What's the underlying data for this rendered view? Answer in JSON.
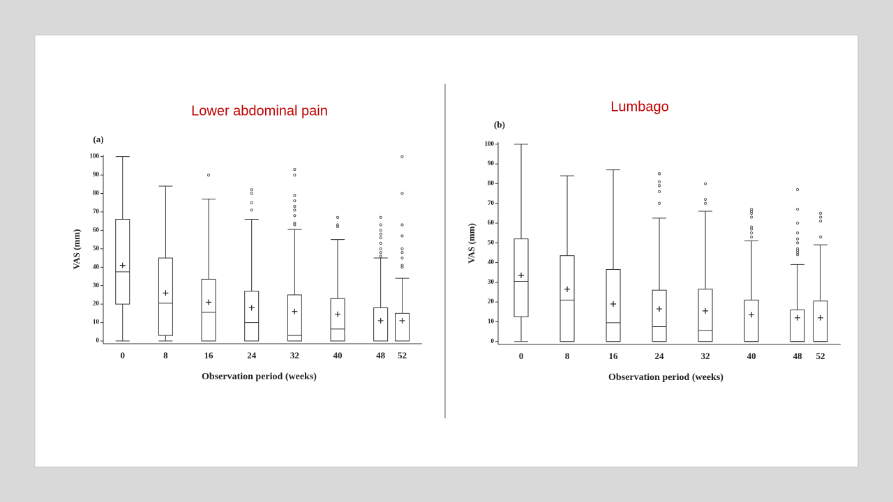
{
  "chart_data": [
    {
      "type": "box",
      "title": "Lower abdominal pain",
      "panel_label": "(a)",
      "x_label": "Observation period  (weeks)",
      "y_label": "VAS (mm)",
      "x": [
        0,
        8,
        16,
        24,
        32,
        40,
        48,
        52
      ],
      "xlim": [
        -3.6,
        55.7
      ],
      "ylim": [
        -1.5,
        101
      ],
      "yticks": [
        0,
        10,
        20,
        30,
        40,
        50,
        60,
        70,
        80,
        90,
        100
      ],
      "whisker_low": [
        0,
        0,
        0,
        0,
        0,
        0,
        0,
        0
      ],
      "q1": [
        20,
        3,
        0,
        0,
        0,
        0,
        0,
        0
      ],
      "median": [
        37.5,
        20.5,
        15.5,
        10,
        3,
        6.5,
        0,
        0
      ],
      "q3": [
        66,
        45,
        33.5,
        27,
        25,
        23,
        18,
        15
      ],
      "whisker_high": [
        100,
        84,
        77,
        66,
        60.5,
        55,
        45,
        34
      ],
      "mean": [
        41,
        26,
        21,
        18,
        16,
        14.5,
        11,
        11
      ],
      "outliers": [
        [],
        [],
        [
          90
        ],
        [
          71,
          75,
          80,
          82
        ],
        [
          63,
          64,
          68,
          71,
          73,
          76,
          79,
          90,
          93
        ],
        [
          62,
          63,
          67
        ],
        [
          46,
          48,
          50,
          53,
          56,
          58,
          60,
          63,
          67
        ],
        [
          40,
          41,
          45,
          48,
          50,
          57,
          63,
          80,
          100
        ]
      ]
    },
    {
      "type": "box",
      "title": "Lumbago",
      "panel_label": "(b)",
      "x_label": "Observation period  (weeks)",
      "y_label": "VAS (mm)",
      "x": [
        0,
        8,
        16,
        24,
        32,
        40,
        48,
        52
      ],
      "xlim": [
        -4,
        55.5
      ],
      "ylim": [
        -1.5,
        101
      ],
      "yticks": [
        0,
        10,
        20,
        30,
        40,
        50,
        60,
        70,
        80,
        90,
        100
      ],
      "whisker_low": [
        0,
        0,
        0,
        0,
        0,
        0,
        0,
        0
      ],
      "q1": [
        12.5,
        0,
        0,
        0,
        0,
        0,
        0,
        0
      ],
      "median": [
        30.5,
        21,
        9.5,
        7.5,
        5.5,
        0,
        0,
        0
      ],
      "q3": [
        52,
        43.5,
        36.5,
        26,
        26.5,
        21,
        16,
        20.5
      ],
      "whisker_high": [
        100,
        84,
        87,
        62.5,
        66,
        51,
        39,
        49
      ],
      "mean": [
        33.5,
        26.5,
        19,
        16.5,
        15.5,
        13.5,
        12,
        12
      ],
      "outliers": [
        [],
        [],
        [],
        [
          70,
          76,
          79,
          81,
          85,
          85
        ],
        [
          70,
          72,
          80
        ],
        [
          53,
          55,
          57,
          58,
          63,
          65,
          66,
          67
        ],
        [
          44,
          45,
          46,
          47,
          50,
          52,
          55,
          60,
          67,
          77
        ],
        [
          53,
          61,
          63,
          65
        ]
      ]
    }
  ]
}
